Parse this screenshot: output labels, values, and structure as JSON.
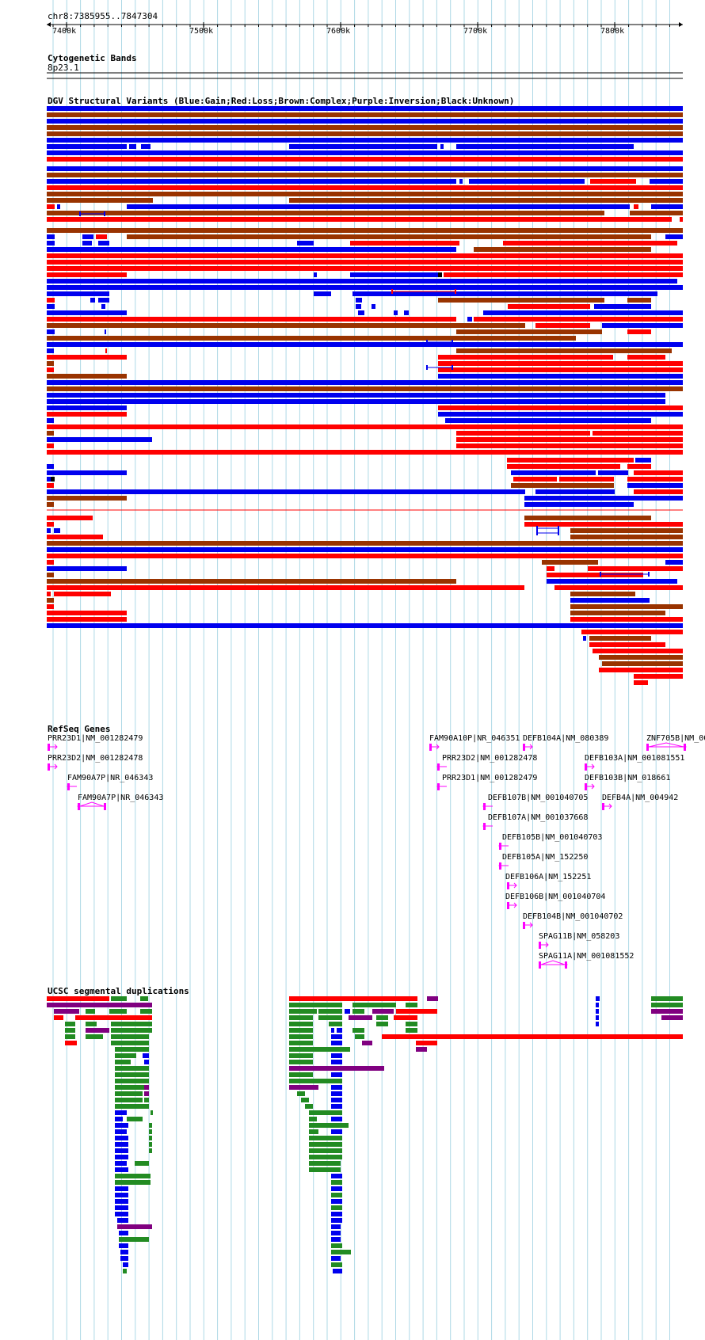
{
  "position": "chr8:7385955..7847304",
  "ruler": {
    "ticks": [
      "7400k",
      "7500k",
      "7600k",
      "7700k",
      "7800k"
    ]
  },
  "colors": {
    "gain": "#0000ee",
    "loss": "#ff0000",
    "complex": "#993300",
    "inversion": "#800080",
    "unknown": "#000000",
    "gene": "#ff00ff",
    "segdup_red": "#ff0000",
    "segdup_green": "#228b22",
    "segdup_blue": "#0000ee",
    "segdup_purple": "#800080",
    "grid": "#add8e6"
  },
  "tracks": {
    "cytoband": {
      "title": "Cytogenetic Bands",
      "band": "8p23.1"
    },
    "dgv": {
      "title": "DGV Structural Variants (Blue:Gain;Red:Loss;Brown:Complex;Purple:Inversion;Black:Unknown)"
    },
    "refseq": {
      "title": "RefSeq Genes",
      "genes": [
        {
          "label": "PRR23D1|NM_001282479",
          "strand": "+"
        },
        {
          "label": "PRR23D2|NM_001282478",
          "strand": "+"
        },
        {
          "label": "FAM90A7P|NR_046343",
          "strand": "-"
        },
        {
          "label": "FAM90A7P|NR_046343",
          "strand": "-"
        },
        {
          "label": "FAM90A10P|NR_046351",
          "strand": "+"
        },
        {
          "label": "DEFB104A|NM_080389",
          "strand": "+"
        },
        {
          "label": "ZNF705B|NM_00",
          "strand": "+"
        },
        {
          "label": "PRR23D2|NM_001282478",
          "strand": "-"
        },
        {
          "label": "DEFB103A|NM_001081551",
          "strand": "+"
        },
        {
          "label": "PRR23D1|NM_001282479",
          "strand": "-"
        },
        {
          "label": "DEFB103B|NM_018661",
          "strand": "+"
        },
        {
          "label": "DEFB107B|NM_001040705",
          "strand": "-"
        },
        {
          "label": "DEFB4A|NM_004942",
          "strand": "+"
        },
        {
          "label": "DEFB107A|NM_001037668",
          "strand": "-"
        },
        {
          "label": "DEFB105B|NM_001040703",
          "strand": "-"
        },
        {
          "label": "DEFB105A|NM_152250",
          "strand": "-"
        },
        {
          "label": "DEFB106A|NM_152251",
          "strand": "+"
        },
        {
          "label": "DEFB106B|NM_001040704",
          "strand": "+"
        },
        {
          "label": "DEFB104B|NM_001040702",
          "strand": "+"
        },
        {
          "label": "SPAG11B|NM_058203",
          "strand": "+"
        },
        {
          "label": "SPAG11A|NM_001081552",
          "strand": "+"
        }
      ]
    },
    "segdup": {
      "title": "UCSC segmental duplications"
    }
  }
}
